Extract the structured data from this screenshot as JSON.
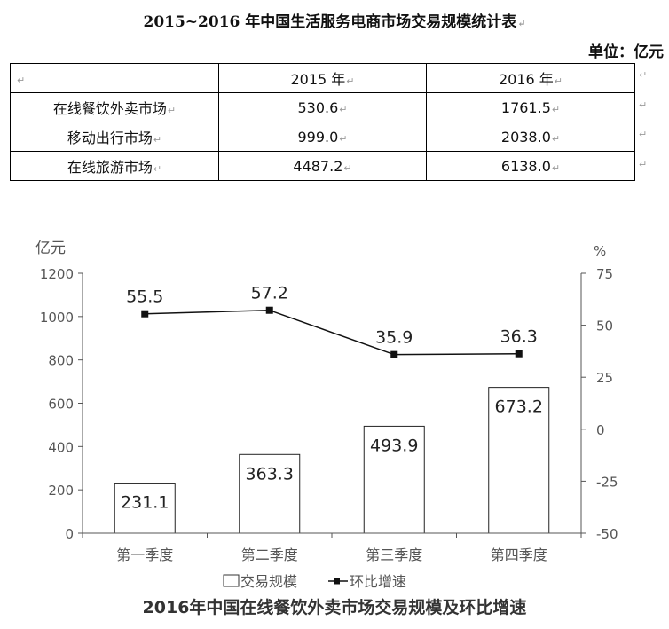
{
  "document": {
    "title": "2015~2016 年中国生活服务电商市场交易规模统计表",
    "unit": "单位：亿元",
    "paragraph_mark": "↵"
  },
  "table": {
    "headers": [
      "",
      "2015 年",
      "2016 年"
    ],
    "rows": [
      {
        "label": "在线餐饮外卖市场",
        "y2015": "530.6",
        "y2016": "1761.5"
      },
      {
        "label": "移动出行市场",
        "y2015": "999.0",
        "y2016": "2038.0"
      },
      {
        "label": "在线旅游市场",
        "y2015": "4487.2",
        "y2016": "6138.0"
      }
    ]
  },
  "chart_data": {
    "type": "bar",
    "title": "2016年中国在线餐饮外卖市场交易规模及环比增速",
    "categories": [
      "第一季度",
      "第二季度",
      "第三季度",
      "第四季度"
    ],
    "series": [
      {
        "name": "交易规模",
        "type": "bar",
        "axis": "left",
        "values": [
          231.1,
          363.3,
          493.9,
          673.2
        ]
      },
      {
        "name": "环比增速",
        "type": "line",
        "axis": "right",
        "values": [
          55.5,
          57.2,
          35.9,
          36.3
        ]
      }
    ],
    "ylabel": "亿元",
    "ylim": [
      0,
      1200
    ],
    "yticks": [
      0,
      200,
      400,
      600,
      800,
      1000,
      1200
    ],
    "y2label": "%",
    "y2lim": [
      -50,
      75
    ],
    "y2ticks": [
      -50,
      -25,
      0,
      25,
      50,
      75
    ],
    "grid": false,
    "legend": "bottom",
    "colors": {
      "bar_fill": "#ffffff",
      "bar_stroke": "#222222",
      "line": "#111111",
      "axis": "#555555",
      "text": "#555555"
    }
  }
}
